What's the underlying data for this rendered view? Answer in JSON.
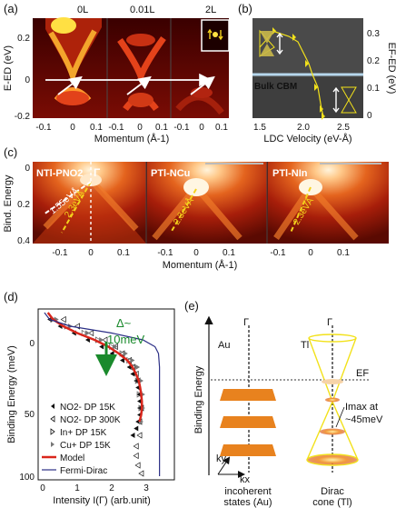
{
  "panel_labels": {
    "a": "(a)",
    "b": "(b)",
    "c": "(c)",
    "d": "(d)",
    "e": "(e)"
  },
  "panel_a": {
    "titles": [
      "0L",
      "0.01L",
      "2L"
    ],
    "ylabel": "E-ED (eV)",
    "xlabel": "Momentum (Å-1)",
    "yticks": [
      "0.2",
      "0",
      "-0.2"
    ],
    "xticks": [
      "-0.1",
      "0",
      "0.1",
      "-0.1",
      "0",
      "0.1",
      "-0.1",
      "0",
      "0.1"
    ]
  },
  "panel_b": {
    "ylabel": "EF-ED (eV)",
    "xlabel": "LDC Velocity (eV-Å)",
    "bulk_label": "Bulk CBM",
    "yticks": [
      "0.3",
      "0.2",
      "0.1",
      "0"
    ],
    "xticks": [
      "1.5",
      "2.0",
      "2.5"
    ],
    "colors": {
      "background": "#4a4a4a",
      "bulk_line": "#b6d7ec",
      "marker": "#f2e11b"
    }
  },
  "panel_c": {
    "titles": [
      "NTl-PNO2",
      "PTl-NCu",
      "PTl-NIn"
    ],
    "gamma": "Γ",
    "velocity_labels": [
      "1.55eVÅ",
      "2.3eVÅ",
      "2.3eVÅ",
      "2.3eVÅ"
    ],
    "ylabel": "Bind. Energy",
    "xlabel": "Momentum (Å-1)",
    "yticks": [
      "0",
      "0.2",
      "0.4"
    ],
    "xticks": [
      "-0.1",
      "0",
      "0.1",
      "-0.1",
      "0",
      "0.1",
      "-0.1",
      "0",
      "0.1"
    ]
  },
  "panel_d": {
    "delta_label": "Δ~",
    "delta_value": "10meV",
    "ylabel": "Binding Energy (meV)",
    "xlabel": "Intensity I(Γ) (arb.unit)",
    "yticks": [
      "0",
      "50",
      "100"
    ],
    "xticks": [
      "0",
      "1",
      "2",
      "3"
    ],
    "legend": [
      "NO2- DP 15K",
      "NO2- DP 300K",
      "In+ DP 15K",
      "Cu+ DP 15K",
      "Model",
      "Fermi-Dirac"
    ],
    "colors": {
      "model": "#d9261c",
      "fermi": "#2c2f86",
      "arrow": "#1a8a2c"
    }
  },
  "chart_data": {
    "type": "scatter",
    "title": "",
    "xlabel": "Intensity I(Γ) (arb.unit)",
    "ylabel": "Binding Energy (meV)",
    "xlim": [
      0,
      3.6
    ],
    "ylim": [
      100,
      -20
    ],
    "series": [
      {
        "name": "NO2- DP 15K",
        "points": [
          [
            0.2,
            -15
          ],
          [
            0.5,
            -10
          ],
          [
            0.9,
            -5
          ],
          [
            1.3,
            0
          ],
          [
            1.7,
            5
          ],
          [
            2.0,
            10
          ],
          [
            2.3,
            15
          ],
          [
            2.5,
            20
          ],
          [
            2.6,
            25
          ],
          [
            2.7,
            30
          ],
          [
            2.75,
            35
          ],
          [
            2.8,
            40
          ],
          [
            2.8,
            45
          ],
          [
            2.8,
            50
          ],
          [
            2.8,
            55
          ],
          [
            2.75,
            60
          ],
          [
            2.7,
            65
          ],
          [
            2.6,
            70
          ]
        ]
      },
      {
        "name": "NO2- DP 300K",
        "points": [
          [
            0.6,
            -15
          ],
          [
            1.0,
            -10
          ],
          [
            1.4,
            -5
          ],
          [
            1.8,
            0
          ],
          [
            2.1,
            5
          ],
          [
            2.3,
            10
          ],
          [
            2.5,
            15
          ],
          [
            2.6,
            20
          ],
          [
            2.7,
            25
          ],
          [
            2.75,
            30
          ],
          [
            2.8,
            40
          ],
          [
            2.85,
            50
          ],
          [
            2.8,
            60
          ],
          [
            2.8,
            70
          ],
          [
            2.7,
            78
          ],
          [
            2.7,
            85
          ],
          [
            2.75,
            92
          ],
          [
            2.85,
            98
          ]
        ]
      },
      {
        "name": "In+ DP 15K",
        "points": [
          [
            0.3,
            -15
          ],
          [
            0.7,
            -10
          ],
          [
            1.2,
            -5
          ],
          [
            1.6,
            0
          ],
          [
            2.0,
            5
          ],
          [
            2.3,
            10
          ],
          [
            2.5,
            15
          ],
          [
            2.65,
            20
          ],
          [
            2.75,
            30
          ],
          [
            2.8,
            40
          ],
          [
            2.85,
            50
          ]
        ]
      },
      {
        "name": "Cu+ DP 15K",
        "points": [
          [
            0.4,
            -15
          ],
          [
            0.8,
            -10
          ],
          [
            1.3,
            -5
          ],
          [
            1.7,
            0
          ],
          [
            2.1,
            5
          ],
          [
            2.4,
            10
          ],
          [
            2.6,
            15
          ],
          [
            2.75,
            20
          ],
          [
            2.85,
            30
          ],
          [
            2.9,
            40
          ],
          [
            2.9,
            50
          ],
          [
            2.85,
            60
          ]
        ]
      },
      {
        "name": "Model",
        "points": [
          [
            0.15,
            -20
          ],
          [
            0.3,
            -15
          ],
          [
            0.6,
            -10
          ],
          [
            1.0,
            -5
          ],
          [
            1.5,
            0
          ],
          [
            1.9,
            5
          ],
          [
            2.2,
            10
          ],
          [
            2.45,
            15
          ],
          [
            2.6,
            20
          ],
          [
            2.7,
            25
          ],
          [
            2.78,
            30
          ],
          [
            2.82,
            35
          ],
          [
            2.85,
            40
          ],
          [
            2.87,
            45
          ],
          [
            2.87,
            50
          ],
          [
            2.85,
            55
          ],
          [
            2.8,
            60
          ]
        ]
      },
      {
        "name": "Fermi-Dirac",
        "points": [
          [
            0.05,
            -20
          ],
          [
            0.2,
            -15
          ],
          [
            0.8,
            -10
          ],
          [
            2.0,
            -5
          ],
          [
            2.9,
            0
          ],
          [
            3.25,
            5
          ],
          [
            3.35,
            10
          ],
          [
            3.38,
            20
          ],
          [
            3.38,
            40
          ],
          [
            3.38,
            60
          ],
          [
            3.38,
            80
          ],
          [
            3.38,
            100
          ]
        ]
      }
    ]
  },
  "panel_e": {
    "ylabel": "Binding Energy",
    "au_label": "Au",
    "tl_label": "Tl",
    "gamma": "Γ",
    "ef_label": "EF",
    "imax_label_1": "Imax at",
    "imax_label_2": "~45meV",
    "ky": "ky",
    "kx": "kx",
    "bottom_left_1": "incoherent",
    "bottom_left_2": "states (Au)",
    "bottom_right_1": "Dirac",
    "bottom_right_2": "cone (Tl)",
    "colors": {
      "plane": "#e8821e",
      "cone": "#f2e11b"
    }
  }
}
